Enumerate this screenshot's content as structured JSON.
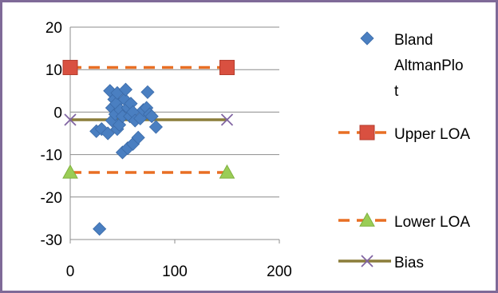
{
  "chart_data": {
    "type": "scatter",
    "title": "",
    "xlabel": "",
    "ylabel": "",
    "xlim": [
      0,
      200
    ],
    "ylim": [
      -30,
      20
    ],
    "x_ticks": [
      "0",
      "100",
      "200"
    ],
    "y_ticks": [
      "20",
      "10",
      "0",
      "-10",
      "-20",
      "-30"
    ],
    "grid": "horizontal",
    "legend_position": "right",
    "series": [
      {
        "name": "Bland AltmanPlot",
        "marker": "diamond",
        "color": "#4a7fc1",
        "points": [
          [
            28,
            -27.5
          ],
          [
            25,
            -4.5
          ],
          [
            30,
            -4
          ],
          [
            36,
            -5
          ],
          [
            38,
            5
          ],
          [
            40,
            1
          ],
          [
            40,
            -2
          ],
          [
            42,
            3
          ],
          [
            43,
            -0.5
          ],
          [
            44,
            2
          ],
          [
            45,
            4.5
          ],
          [
            45,
            -4
          ],
          [
            47,
            -3
          ],
          [
            48,
            0.5
          ],
          [
            50,
            -1
          ],
          [
            50,
            -9.5
          ],
          [
            52,
            3
          ],
          [
            53,
            5.3
          ],
          [
            55,
            1
          ],
          [
            55,
            -8.5
          ],
          [
            57,
            -1
          ],
          [
            58,
            2
          ],
          [
            60,
            0
          ],
          [
            60,
            -7.5
          ],
          [
            62,
            -2
          ],
          [
            65,
            -6
          ],
          [
            67,
            -1.5
          ],
          [
            70,
            0.5
          ],
          [
            73,
            1
          ],
          [
            74,
            4.7
          ],
          [
            76,
            -0.5
          ],
          [
            78,
            -1
          ],
          [
            82,
            -3.5
          ]
        ]
      },
      {
        "name": "Upper LOA",
        "marker": "square",
        "color": "#d95040",
        "line_color": "#e86f24",
        "line_style": "dashed",
        "points": [
          [
            0,
            10.5
          ],
          [
            150,
            10.5
          ]
        ]
      },
      {
        "name": "Lower LOA",
        "marker": "triangle",
        "color": "#9acd56",
        "line_color": "#e86f24",
        "line_style": "dashed",
        "points": [
          [
            0,
            -14.2
          ],
          [
            150,
            -14.2
          ]
        ]
      },
      {
        "name": "Bias",
        "marker": "x",
        "color": "#8064a2",
        "line_color": "#8b7d3a",
        "line_style": "solid",
        "points": [
          [
            0,
            -1.8
          ],
          [
            150,
            -1.8
          ]
        ]
      }
    ],
    "legend": [
      {
        "lines": [
          "Bland",
          "AltmanPlo",
          "t"
        ]
      },
      {
        "lines": [
          "Upper LOA"
        ]
      },
      {
        "lines": [
          "Lower LOA"
        ]
      },
      {
        "lines": [
          "Bias"
        ]
      }
    ]
  }
}
